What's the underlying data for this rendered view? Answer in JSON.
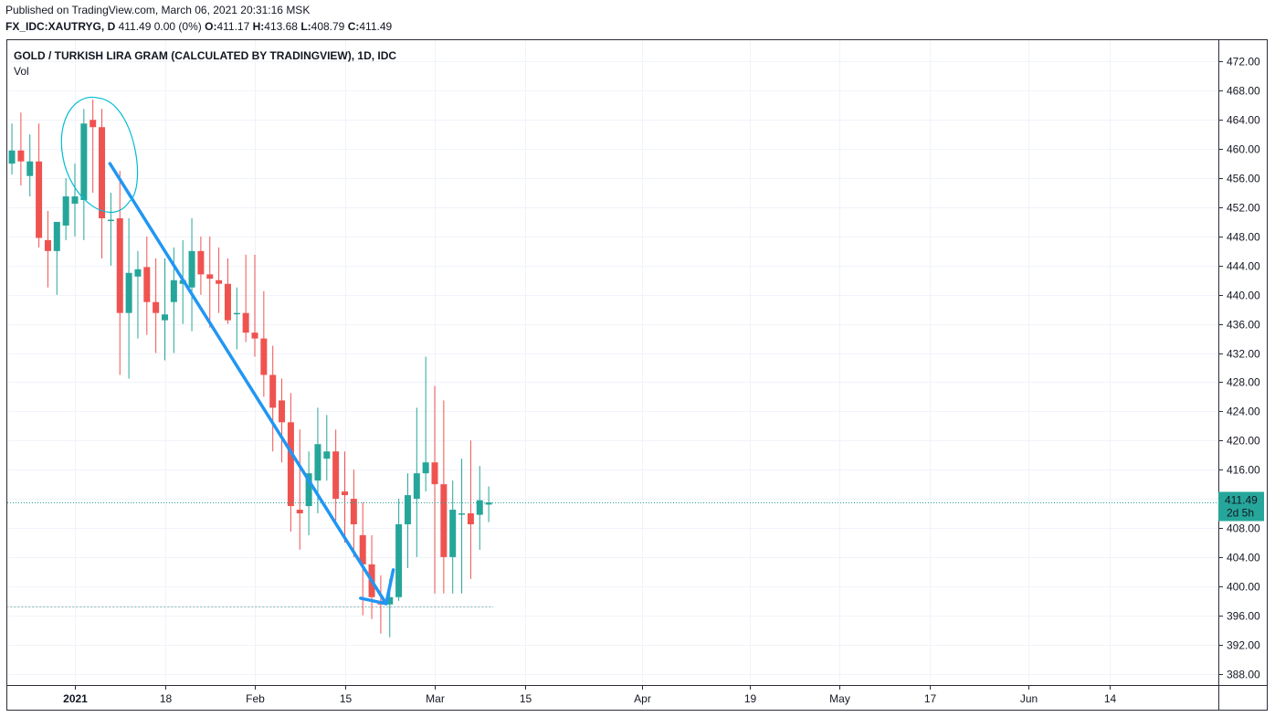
{
  "header": {
    "published": "Published on TradingView.com, March 06, 2021 20:31:16 MSK",
    "symbol": "FX_IDC:XAUTRYG, D",
    "last": "411.49",
    "change": "0.00 (0%)",
    "o_label": "O:",
    "o": "411.17",
    "h_label": "H:",
    "h": "413.68",
    "l_label": "L:",
    "l": "408.79",
    "c_label": "C:",
    "c": "411.49"
  },
  "pane": {
    "title": "GOLD / TURKISH LIRA GRAM (CALCULATED BY TRADINGVIEW), 1D, IDC",
    "indicator": "Vol"
  },
  "price_tag": {
    "value": "411.49",
    "countdown": "2d 5h"
  },
  "colors": {
    "up": "#26a69a",
    "down": "#ef5350",
    "drawing": "#2196f3",
    "ellipse": "#00bcd4",
    "grid": "#f0f3fa"
  },
  "chart_data": {
    "type": "candlestick",
    "ylim": [
      385.5,
      475
    ],
    "y_ticks": [
      388,
      392,
      396,
      400,
      404,
      408,
      412,
      416,
      420,
      424,
      428,
      432,
      436,
      440,
      444,
      448,
      452,
      456,
      460,
      464,
      468,
      472
    ],
    "x_ticks": [
      {
        "label": "2021",
        "day": 0,
        "bold": true
      },
      {
        "label": "18",
        "day": 10
      },
      {
        "label": "Feb",
        "day": 20
      },
      {
        "label": "15",
        "day": 30
      },
      {
        "label": "Mar",
        "day": 40
      },
      {
        "label": "15",
        "day": 50
      },
      {
        "label": "Apr",
        "day": 63
      },
      {
        "label": "19",
        "day": 75
      },
      {
        "label": "May",
        "day": 85
      },
      {
        "label": "17",
        "day": 95
      },
      {
        "label": "Jun",
        "day": 106
      },
      {
        "label": "14",
        "day": 115
      }
    ],
    "candles": [
      {
        "day": -7,
        "o": 458,
        "h": 463.5,
        "l": 456.5,
        "c": 459.8
      },
      {
        "day": -6,
        "o": 459.8,
        "h": 465,
        "l": 455,
        "c": 458.3
      },
      {
        "day": -5,
        "o": 456.3,
        "h": 462,
        "l": 453.5,
        "c": 458.3
      },
      {
        "day": -4,
        "o": 458.3,
        "h": 463.5,
        "l": 446.5,
        "c": 447.8
      },
      {
        "day": -3,
        "o": 447.5,
        "h": 451.5,
        "l": 441,
        "c": 446
      },
      {
        "day": -2,
        "o": 446,
        "h": 450,
        "l": 440,
        "c": 450
      },
      {
        "day": -1,
        "o": 449.5,
        "h": 456,
        "l": 447.5,
        "c": 453.5
      },
      {
        "day": 0,
        "o": 452.5,
        "h": 458,
        "l": 448,
        "c": 453.5
      },
      {
        "day": 1,
        "o": 453,
        "h": 465.5,
        "l": 447.5,
        "c": 463.5
      },
      {
        "day": 2,
        "o": 464,
        "h": 466.8,
        "l": 454,
        "c": 463
      },
      {
        "day": 3,
        "o": 463,
        "h": 465.5,
        "l": 445,
        "c": 450.5
      },
      {
        "day": 4,
        "o": 450.3,
        "h": 454,
        "l": 444,
        "c": 450.3
      },
      {
        "day": 5,
        "o": 450.5,
        "h": 457,
        "l": 429,
        "c": 437.5
      },
      {
        "day": 6,
        "o": 437.5,
        "h": 450.5,
        "l": 428.5,
        "c": 443
      },
      {
        "day": 7,
        "o": 442.5,
        "h": 446,
        "l": 434,
        "c": 443.5
      },
      {
        "day": 8,
        "o": 443.8,
        "h": 448,
        "l": 434.5,
        "c": 439
      },
      {
        "day": 9,
        "o": 439,
        "h": 445,
        "l": 432,
        "c": 437.5
      },
      {
        "day": 10,
        "o": 436.5,
        "h": 445,
        "l": 431,
        "c": 437.3
      },
      {
        "day": 11,
        "o": 439,
        "h": 446.5,
        "l": 432,
        "c": 442
      },
      {
        "day": 12,
        "o": 441.5,
        "h": 447.5,
        "l": 436,
        "c": 442
      },
      {
        "day": 13,
        "o": 441,
        "h": 450.5,
        "l": 435,
        "c": 446
      },
      {
        "day": 14,
        "o": 446,
        "h": 448,
        "l": 440,
        "c": 442.8
      },
      {
        "day": 15,
        "o": 442.8,
        "h": 448,
        "l": 435.5,
        "c": 442.2
      },
      {
        "day": 16,
        "o": 442,
        "h": 446.5,
        "l": 437.5,
        "c": 441.5
      },
      {
        "day": 17,
        "o": 441.5,
        "h": 445,
        "l": 436,
        "c": 436.5
      },
      {
        "day": 18,
        "o": 437.5,
        "h": 441,
        "l": 432.5,
        "c": 437.5
      },
      {
        "day": 19,
        "o": 437.5,
        "h": 445.5,
        "l": 433.5,
        "c": 434.8
      },
      {
        "day": 20,
        "o": 434.8,
        "h": 445.5,
        "l": 431.5,
        "c": 434
      },
      {
        "day": 21,
        "o": 434,
        "h": 440.5,
        "l": 426,
        "c": 429
      },
      {
        "day": 22,
        "o": 429,
        "h": 433,
        "l": 418.5,
        "c": 424.5
      },
      {
        "day": 23,
        "o": 425.5,
        "h": 428.5,
        "l": 417,
        "c": 422.5
      },
      {
        "day": 24,
        "o": 422.5,
        "h": 426.5,
        "l": 407.5,
        "c": 411
      },
      {
        "day": 25,
        "o": 410.5,
        "h": 421.5,
        "l": 405,
        "c": 410
      },
      {
        "day": 26,
        "o": 411,
        "h": 418.5,
        "l": 407,
        "c": 415.5
      },
      {
        "day": 27,
        "o": 414.5,
        "h": 424.5,
        "l": 410,
        "c": 419.5
      },
      {
        "day": 28,
        "o": 417.5,
        "h": 423.5,
        "l": 414.5,
        "c": 418.5
      },
      {
        "day": 29,
        "o": 418.5,
        "h": 421.5,
        "l": 409,
        "c": 412
      },
      {
        "day": 30,
        "o": 413,
        "h": 418.5,
        "l": 406,
        "c": 412.5
      },
      {
        "day": 31,
        "o": 412,
        "h": 416,
        "l": 404,
        "c": 408.5
      },
      {
        "day": 32,
        "o": 407,
        "h": 411.5,
        "l": 396,
        "c": 403
      },
      {
        "day": 33,
        "o": 403,
        "h": 407,
        "l": 395.5,
        "c": 398.5
      },
      {
        "day": 34,
        "o": 398,
        "h": 401.5,
        "l": 393.5,
        "c": 397.5
      },
      {
        "day": 35,
        "o": 397.5,
        "h": 401,
        "l": 393,
        "c": 398.5
      },
      {
        "day": 36,
        "o": 398.5,
        "h": 412,
        "l": 398,
        "c": 408.5
      },
      {
        "day": 37,
        "o": 408.5,
        "h": 415.5,
        "l": 402.5,
        "c": 412.5
      },
      {
        "day": 38,
        "o": 412,
        "h": 424.5,
        "l": 404,
        "c": 415.5
      },
      {
        "day": 39,
        "o": 415.5,
        "h": 431.5,
        "l": 413,
        "c": 417
      },
      {
        "day": 40,
        "o": 417,
        "h": 427.5,
        "l": 399,
        "c": 414
      },
      {
        "day": 41,
        "o": 414,
        "h": 425.5,
        "l": 399,
        "c": 404
      },
      {
        "day": 42,
        "o": 404,
        "h": 414.5,
        "l": 399,
        "c": 410.5
      },
      {
        "day": 43,
        "o": 410,
        "h": 417.5,
        "l": 399,
        "c": 410
      },
      {
        "day": 44,
        "o": 410,
        "h": 420,
        "l": 401,
        "c": 408.5
      },
      {
        "day": 45,
        "o": 409.8,
        "h": 416.5,
        "l": 405,
        "c": 411.8
      },
      {
        "day": 46,
        "o": 411.2,
        "h": 413.7,
        "l": 408.8,
        "c": 411.5
      }
    ],
    "current_price": 411.49,
    "support_level": 397.2,
    "annotations": {
      "arrow": {
        "from": {
          "day": 4,
          "price": 458
        },
        "to": {
          "day": 35,
          "price": 397.6
        }
      },
      "arrow_rebound": {
        "to": {
          "day": 36,
          "price": 401
        }
      },
      "circle_center": {
        "day": 2,
        "price": 460
      }
    }
  }
}
